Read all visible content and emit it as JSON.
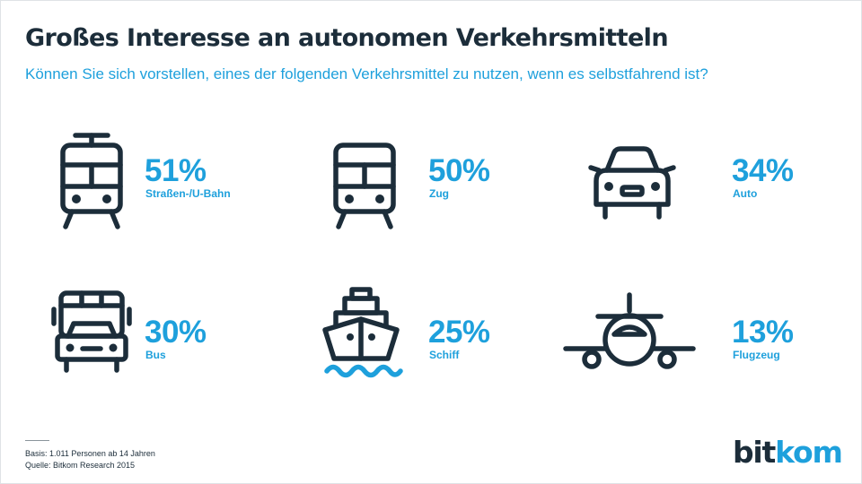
{
  "header": {
    "title": "Großes Interesse an autonomen Verkehrsmitteln",
    "subtitle": "Können Sie sich vorstellen, eines der folgenden Verkehrsmittel zu nutzen, wenn es selbstfahrend ist?"
  },
  "chart_data": {
    "type": "table",
    "title": "Großes Interesse an autonomen Verkehrsmitteln",
    "subtitle": "Können Sie sich vorstellen, eines der folgenden Verkehrsmittel zu nutzen, wenn es selbstfahrend ist?",
    "categories": [
      "Straßen-/U-Bahn",
      "Zug",
      "Auto",
      "Bus",
      "Schiff",
      "Flugzeug"
    ],
    "values": [
      51,
      50,
      34,
      30,
      25,
      13
    ],
    "value_labels": [
      "51%",
      "50%",
      "34%",
      "30%",
      "25%",
      "13%"
    ],
    "icons": [
      "tram-icon",
      "train-icon",
      "car-icon",
      "bus-icon",
      "ship-icon",
      "airplane-icon"
    ]
  },
  "footer": {
    "basis": "Basis: 1.011 Personen ab 14 Jahren",
    "source": "Quelle: Bitkom Research 2015",
    "logo_part1": "bit",
    "logo_part2": "kom"
  },
  "colors": {
    "accent": "#1ea0dc",
    "dark": "#1c2d3a",
    "background": "#ffffff"
  }
}
